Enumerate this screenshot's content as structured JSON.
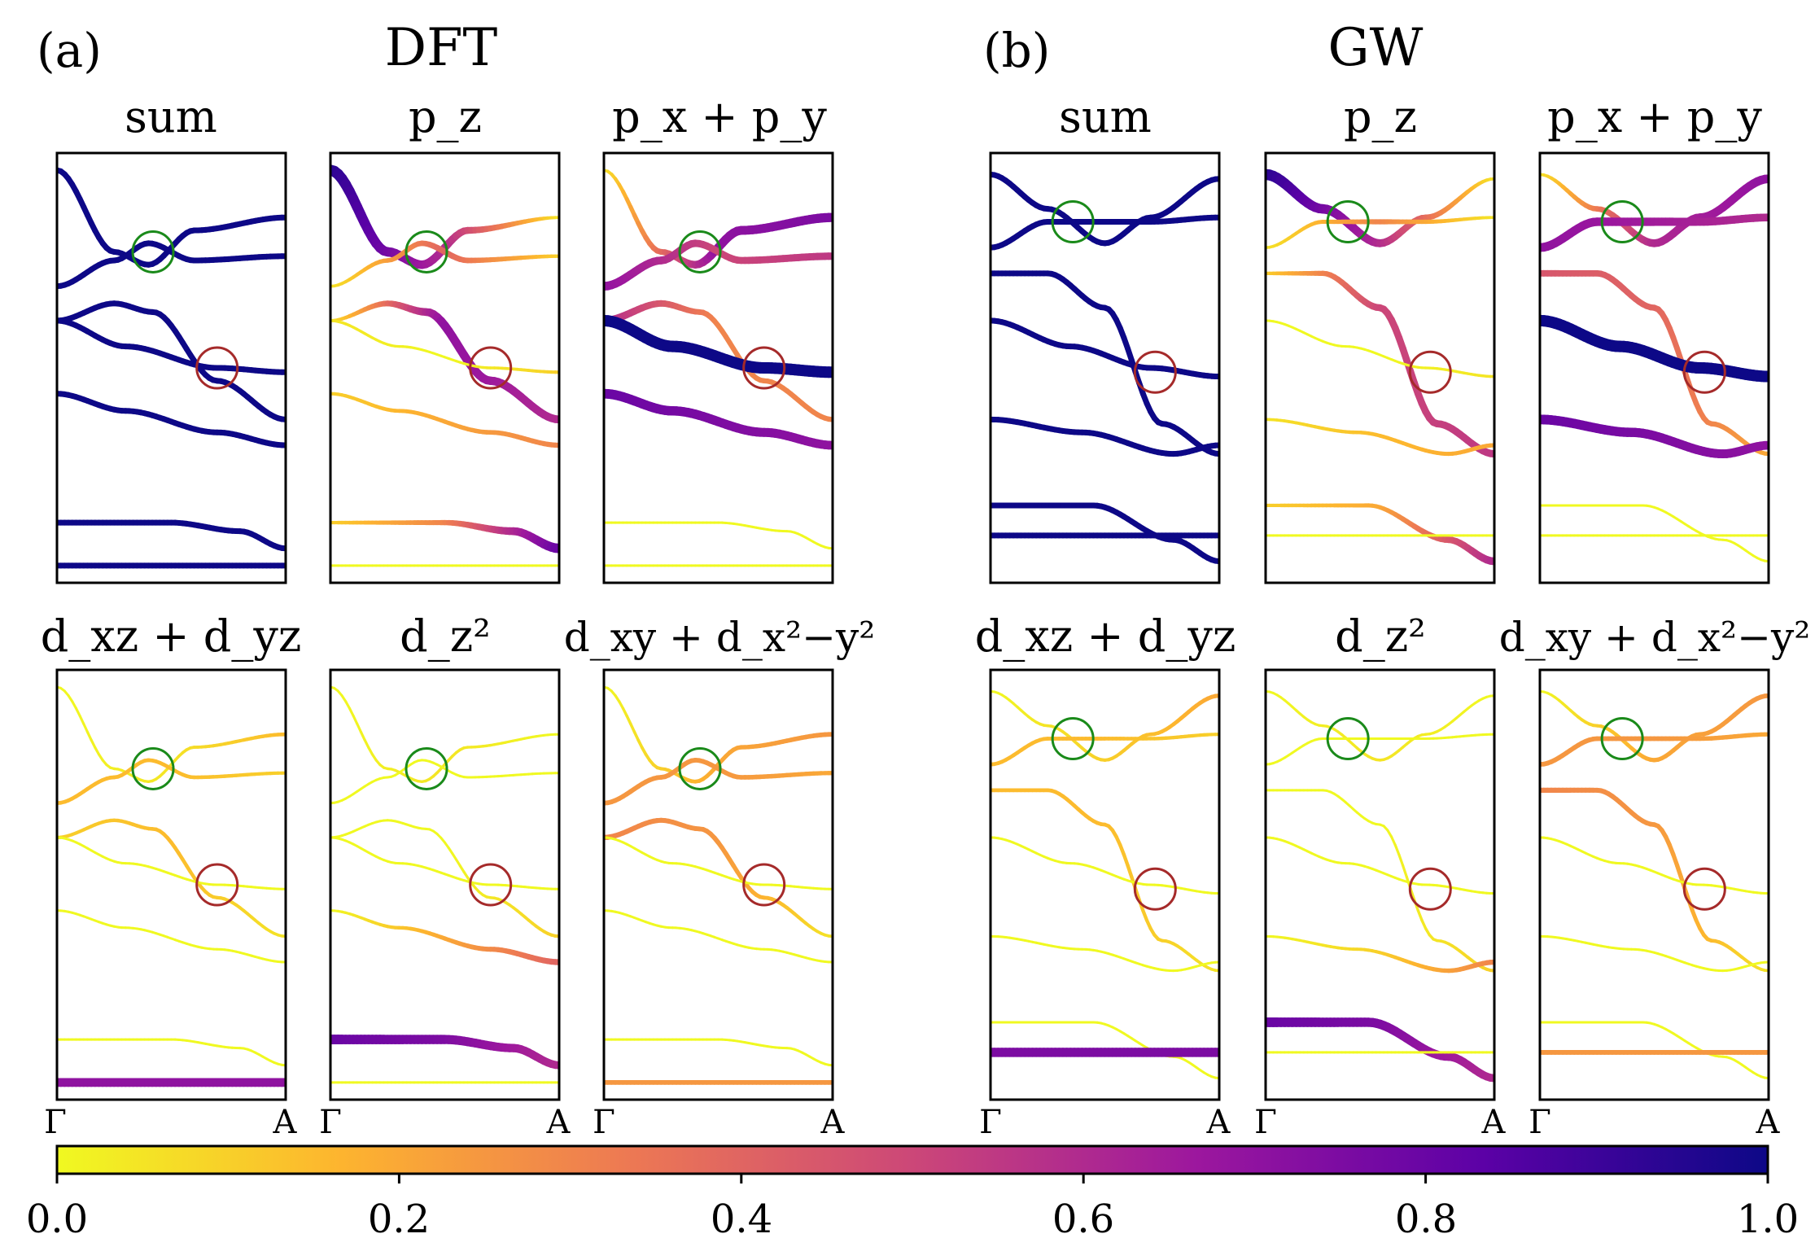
{
  "chart_data": {
    "type": "band-structure-projections",
    "panel_labels": {
      "a": "(a)",
      "b": "(b)"
    },
    "method_titles": {
      "dft": "DFT",
      "gw": "GW"
    },
    "projection_titles": [
      "sum",
      "p_z",
      "p_x + p_y",
      "d_xz + d_yz",
      "d_z²",
      "d_xy + d_x²−y²"
    ],
    "k_labels": {
      "start": "Γ",
      "end": "A"
    },
    "colorbar": {
      "colormap": "plasma_r",
      "range": [
        0.0,
        1.0
      ],
      "tick_labels": [
        "0.0",
        "0.2",
        "0.4",
        "0.6",
        "0.8",
        "1.0"
      ],
      "colors": [
        "#f0f921",
        "#fdb42f",
        "#ed7953",
        "#cc4778",
        "#9c179e",
        "#5c01a6",
        "#0d0887"
      ]
    },
    "circle_colors": {
      "green": "#1a8a1a",
      "red": "#a52a2a"
    },
    "bands": {
      "dft": [
        {
          "id": 1,
          "x": [
            0,
            0.25,
            0.4,
            0.6,
            1.0
          ],
          "y": [
            0.96,
            0.77,
            0.74,
            0.82,
            0.85
          ]
        },
        {
          "id": 2,
          "x": [
            0,
            0.25,
            0.4,
            0.6,
            1.0
          ],
          "y": [
            0.69,
            0.75,
            0.79,
            0.75,
            0.76
          ]
        },
        {
          "id": 3,
          "x": [
            0,
            0.25,
            0.42,
            0.7,
            1.0
          ],
          "y": [
            0.61,
            0.65,
            0.63,
            0.47,
            0.38
          ]
        },
        {
          "id": 4,
          "x": [
            0,
            0.3,
            0.7,
            1.0
          ],
          "y": [
            0.61,
            0.55,
            0.5,
            0.49
          ]
        },
        {
          "id": 5,
          "x": [
            0,
            0.3,
            0.7,
            1.0
          ],
          "y": [
            0.44,
            0.4,
            0.35,
            0.32
          ]
        },
        {
          "id": 6,
          "x": [
            0,
            0.5,
            0.8,
            1.0
          ],
          "y": [
            0.14,
            0.14,
            0.12,
            0.08
          ]
        },
        {
          "id": 7,
          "x": [
            0,
            1.0
          ],
          "y": [
            0.04,
            0.04
          ]
        }
      ],
      "gw": [
        {
          "id": 1,
          "x": [
            0,
            0.25,
            0.5,
            0.7,
            1.0
          ],
          "y": [
            0.95,
            0.87,
            0.79,
            0.85,
            0.94
          ]
        },
        {
          "id": 2,
          "x": [
            0,
            0.25,
            0.45,
            0.7,
            1.0
          ],
          "y": [
            0.78,
            0.84,
            0.84,
            0.84,
            0.85
          ]
        },
        {
          "id": 3,
          "x": [
            0,
            0.25,
            0.5,
            0.75,
            1.0
          ],
          "y": [
            0.72,
            0.72,
            0.64,
            0.37,
            0.3
          ]
        },
        {
          "id": 4,
          "x": [
            0,
            0.35,
            0.7,
            1.0
          ],
          "y": [
            0.61,
            0.55,
            0.5,
            0.48
          ]
        },
        {
          "id": 5,
          "x": [
            0,
            0.4,
            0.8,
            1.0
          ],
          "y": [
            0.38,
            0.35,
            0.3,
            0.32
          ]
        },
        {
          "id": 6,
          "x": [
            0,
            0.45,
            0.8,
            1.0
          ],
          "y": [
            0.18,
            0.18,
            0.1,
            0.05
          ]
        },
        {
          "id": 7,
          "x": [
            0,
            1.0
          ],
          "y": [
            0.11,
            0.11
          ]
        }
      ]
    },
    "weights": {
      "dft": {
        "sum": [
          1,
          1,
          1,
          1,
          1,
          1,
          1
        ],
        "pz": [
          [
            0.95,
            0.6,
            0.05
          ],
          [
            0.05,
            0.4,
            0.1
          ],
          [
            0.05,
            0.7,
            0.6
          ],
          [
            0.05,
            0.0,
            0.1
          ],
          [
            0.1,
            0.2,
            0.3
          ],
          [
            0.1,
            0.3,
            0.8
          ],
          [
            0.0,
            0.0,
            0.0
          ]
        ],
        "pxpy": [
          [
            0.05,
            0.7,
            0.75
          ],
          [
            0.7,
            0.5,
            0.55
          ],
          [
            0.6,
            0.3,
            0.3
          ],
          [
            1.0,
            1.0,
            1.0
          ],
          [
            0.8,
            0.75,
            0.7
          ],
          [
            0.0,
            0.0,
            0.0
          ],
          [
            0.0,
            0.0,
            0.0
          ]
        ],
        "dxzdyz": [
          [
            0.0,
            0.05,
            0.15
          ],
          [
            0.15,
            0.15,
            0.1
          ],
          [
            0.1,
            0.15,
            0.05
          ],
          [
            0.0,
            0.0,
            0.0
          ],
          [
            0.0,
            0.0,
            0.0
          ],
          [
            0.0,
            0.0,
            0.0
          ],
          [
            0.7,
            0.7,
            0.7
          ]
        ],
        "dz2": [
          [
            0.0,
            0.05,
            0.0
          ],
          [
            0.0,
            0.0,
            0.0
          ],
          [
            0.0,
            0.0,
            0.1
          ],
          [
            0.0,
            0.0,
            0.0
          ],
          [
            0.0,
            0.2,
            0.4
          ],
          [
            0.8,
            0.75,
            0.6
          ],
          [
            0.0,
            0.0,
            0.0
          ]
        ],
        "dxydx2y2": [
          [
            0.0,
            0.2,
            0.25
          ],
          [
            0.25,
            0.25,
            0.2
          ],
          [
            0.3,
            0.25,
            0.05
          ],
          [
            0.0,
            0.0,
            0.0
          ],
          [
            0.0,
            0.0,
            0.0
          ],
          [
            0.0,
            0.0,
            0.0
          ],
          [
            0.25,
            0.25,
            0.25
          ]
        ]
      },
      "gw": {
        "sum": [
          1,
          1,
          1,
          1,
          1,
          1,
          1
        ],
        "pz": [
          [
            0.95,
            0.6,
            0.05
          ],
          [
            0.05,
            0.3,
            0.05
          ],
          [
            0.1,
            0.5,
            0.55
          ],
          [
            0.0,
            0.0,
            0.05
          ],
          [
            0.05,
            0.15,
            0.2
          ],
          [
            0.1,
            0.2,
            0.6
          ],
          [
            0.0,
            0.0,
            0.0
          ]
        ],
        "pxpy": [
          [
            0.05,
            0.6,
            0.7
          ],
          [
            0.7,
            0.65,
            0.6
          ],
          [
            0.45,
            0.4,
            0.2
          ],
          [
            1.0,
            1.0,
            1.0
          ],
          [
            0.8,
            0.75,
            0.7
          ],
          [
            0.0,
            0.0,
            0.0
          ],
          [
            0.0,
            0.0,
            0.0
          ]
        ],
        "dxzdyz": [
          [
            0.0,
            0.1,
            0.2
          ],
          [
            0.15,
            0.15,
            0.1
          ],
          [
            0.15,
            0.15,
            0.05
          ],
          [
            0.0,
            0.0,
            0.0
          ],
          [
            0.0,
            0.0,
            0.0
          ],
          [
            0.0,
            0.0,
            0.0
          ],
          [
            0.75,
            0.75,
            0.75
          ]
        ],
        "dz2": [
          [
            0.0,
            0.05,
            0.0
          ],
          [
            0.0,
            0.0,
            0.0
          ],
          [
            0.0,
            0.0,
            0.1
          ],
          [
            0.0,
            0.0,
            0.0
          ],
          [
            0.0,
            0.1,
            0.3
          ],
          [
            0.8,
            0.75,
            0.6
          ],
          [
            0.0,
            0.0,
            0.0
          ]
        ],
        "dxydx2y2": [
          [
            0.0,
            0.2,
            0.25
          ],
          [
            0.25,
            0.25,
            0.2
          ],
          [
            0.3,
            0.25,
            0.05
          ],
          [
            0.0,
            0.0,
            0.0
          ],
          [
            0.0,
            0.0,
            0.0
          ],
          [
            0.0,
            0.0,
            0.0
          ],
          [
            0.25,
            0.25,
            0.25
          ]
        ]
      }
    },
    "circles": {
      "dft": {
        "green": [
          0.42,
          0.77
        ],
        "red": [
          0.7,
          0.5
        ]
      },
      "gw": {
        "green": [
          0.36,
          0.84
        ],
        "red": [
          0.72,
          0.49
        ]
      }
    }
  }
}
